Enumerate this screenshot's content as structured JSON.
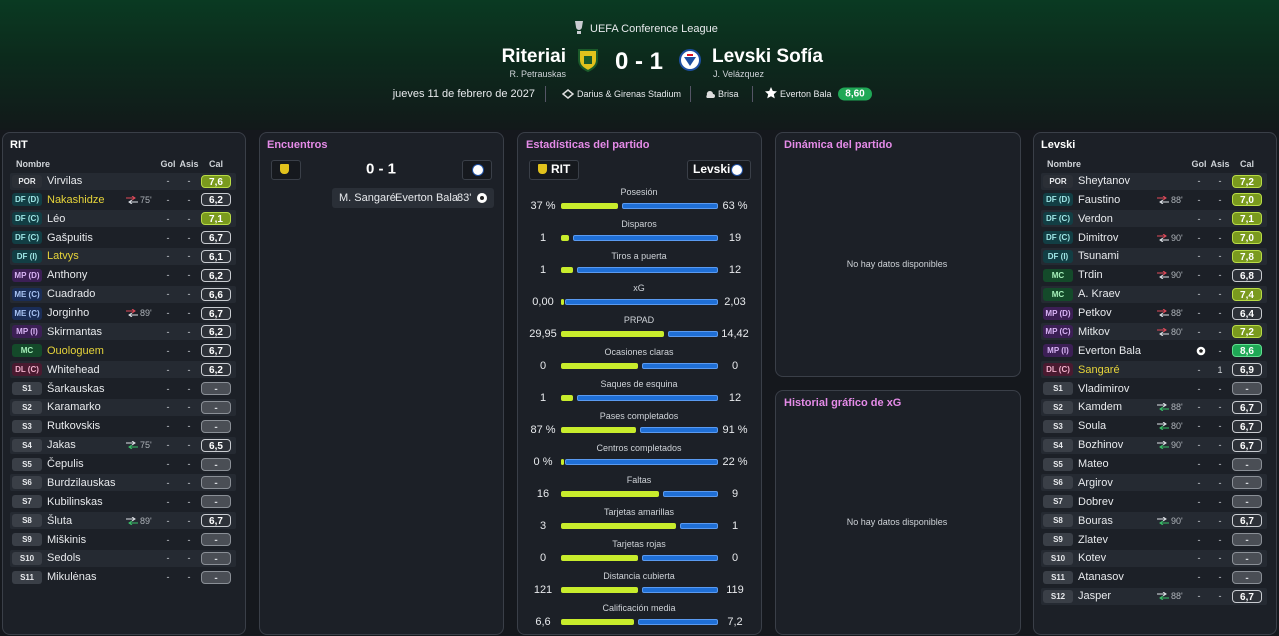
{
  "header": {
    "competition": "UEFA Conference League",
    "home_team": "Riteriai",
    "home_manager": "R. Petrauskas",
    "score": "0 - 1",
    "away_team": "Levski Sofía",
    "away_manager": "J. Velázquez",
    "date": "jueves 11 de febrero de 2027",
    "stadium": "Darius & Girenas Stadium",
    "weather": "Brisa",
    "motm": "Everton Bala",
    "motm_rating": "8,60"
  },
  "home_lineup": {
    "title": "RIT",
    "columns": [
      "Nombre",
      "Gol",
      "Asis",
      "Cal"
    ],
    "players": [
      {
        "pos": "POR",
        "name": "Virvilas",
        "gol": "-",
        "asis": "-",
        "cal": "7,6"
      },
      {
        "pos": "DF (D)",
        "name": "Nakashidze",
        "sub": "out",
        "sub_min": "75'",
        "gol": "-",
        "asis": "-",
        "cal": "6,2",
        "color": "#e6d43a"
      },
      {
        "pos": "DF (C)",
        "name": "Léo",
        "gol": "-",
        "asis": "-",
        "cal": "7,1"
      },
      {
        "pos": "DF (C)",
        "name": "Gašpuitis",
        "gol": "-",
        "asis": "-",
        "cal": "6,7"
      },
      {
        "pos": "DF (I)",
        "name": "Latvys",
        "gol": "-",
        "asis": "-",
        "cal": "6,1",
        "color": "#e6d43a"
      },
      {
        "pos": "MP (D)",
        "name": "Anthony",
        "gol": "-",
        "asis": "-",
        "cal": "6,2"
      },
      {
        "pos": "ME (C)",
        "name": "Cuadrado",
        "gol": "-",
        "asis": "-",
        "cal": "6,6"
      },
      {
        "pos": "ME (C)",
        "name": "Jorginho",
        "sub": "out",
        "sub_min": "89'",
        "gol": "-",
        "asis": "-",
        "cal": "6,7"
      },
      {
        "pos": "MP (I)",
        "name": "Skirmantas",
        "gol": "-",
        "asis": "-",
        "cal": "6,2"
      },
      {
        "pos": "MC",
        "name": "Ouologuem",
        "gol": "-",
        "asis": "-",
        "cal": "6,7",
        "color": "#e6d43a"
      },
      {
        "pos": "DL (C)",
        "name": "Whitehead",
        "gol": "-",
        "asis": "-",
        "cal": "6,2"
      },
      {
        "pos": "S1",
        "name": "Šarkauskas",
        "gol": "-",
        "asis": "-",
        "cal": "-"
      },
      {
        "pos": "S2",
        "name": "Karamarko",
        "gol": "-",
        "asis": "-",
        "cal": "-"
      },
      {
        "pos": "S3",
        "name": "Rutkovskis",
        "gol": "-",
        "asis": "-",
        "cal": "-"
      },
      {
        "pos": "S4",
        "name": "Jakas",
        "sub": "in",
        "sub_min": "75'",
        "gol": "-",
        "asis": "-",
        "cal": "6,5"
      },
      {
        "pos": "S5",
        "name": "Čepulis",
        "gol": "-",
        "asis": "-",
        "cal": "-"
      },
      {
        "pos": "S6",
        "name": "Burdzilauskas",
        "gol": "-",
        "asis": "-",
        "cal": "-"
      },
      {
        "pos": "S7",
        "name": "Kubilinskas",
        "gol": "-",
        "asis": "-",
        "cal": "-"
      },
      {
        "pos": "S8",
        "name": "Šluta",
        "sub": "in",
        "sub_min": "89'",
        "gol": "-",
        "asis": "-",
        "cal": "6,7"
      },
      {
        "pos": "S9",
        "name": "Miškinis",
        "gol": "-",
        "asis": "-",
        "cal": "-"
      },
      {
        "pos": "S10",
        "name": "Sedols",
        "gol": "-",
        "asis": "-",
        "cal": "-"
      },
      {
        "pos": "S11",
        "name": "Mikulėnas",
        "gol": "-",
        "asis": "-",
        "cal": "-"
      }
    ]
  },
  "away_lineup": {
    "title": "Levski",
    "columns": [
      "Nombre",
      "Gol",
      "Asis",
      "Cal"
    ],
    "players": [
      {
        "pos": "POR",
        "name": "Sheytanov",
        "gol": "-",
        "asis": "-",
        "cal": "7,2"
      },
      {
        "pos": "DF (D)",
        "name": "Faustino",
        "sub": "out",
        "sub_min": "88'",
        "gol": "-",
        "asis": "-",
        "cal": "7,0"
      },
      {
        "pos": "DF (C)",
        "name": "Verdon",
        "gol": "-",
        "asis": "-",
        "cal": "7,1"
      },
      {
        "pos": "DF (C)",
        "name": "Dimitrov",
        "sub": "out",
        "sub_min": "90'",
        "gol": "-",
        "asis": "-",
        "cal": "7,0"
      },
      {
        "pos": "DF (I)",
        "name": "Tsunami",
        "gol": "-",
        "asis": "-",
        "cal": "7,8"
      },
      {
        "pos": "MC",
        "name": "Trdin",
        "sub": "out",
        "sub_min": "90'",
        "gol": "-",
        "asis": "-",
        "cal": "6,8"
      },
      {
        "pos": "MC",
        "name": "A. Kraev",
        "gol": "-",
        "asis": "-",
        "cal": "7,4"
      },
      {
        "pos": "MP (D)",
        "name": "Petkov",
        "sub": "out",
        "sub_min": "88'",
        "gol": "-",
        "asis": "-",
        "cal": "6,4"
      },
      {
        "pos": "MP (C)",
        "name": "Mitkov",
        "sub": "out",
        "sub_min": "80'",
        "gol": "-",
        "asis": "-",
        "cal": "7,2"
      },
      {
        "pos": "MP (I)",
        "name": "Everton Bala",
        "goal": true,
        "asis": "-",
        "cal": "8,6"
      },
      {
        "pos": "DL (C)",
        "name": "Sangaré",
        "gol": "-",
        "asis": "1",
        "cal": "6,9",
        "color": "#e6d43a"
      },
      {
        "pos": "S1",
        "name": "Vladimirov",
        "gol": "-",
        "asis": "-",
        "cal": "-"
      },
      {
        "pos": "S2",
        "name": "Kamdem",
        "sub": "in",
        "sub_min": "88'",
        "gol": "-",
        "asis": "-",
        "cal": "6,7"
      },
      {
        "pos": "S3",
        "name": "Soula",
        "sub": "in",
        "sub_min": "80'",
        "gol": "-",
        "asis": "-",
        "cal": "6,7"
      },
      {
        "pos": "S4",
        "name": "Bozhinov",
        "sub": "in",
        "sub_min": "90'",
        "gol": "-",
        "asis": "-",
        "cal": "6,7"
      },
      {
        "pos": "S5",
        "name": "Mateo",
        "gol": "-",
        "asis": "-",
        "cal": "-"
      },
      {
        "pos": "S6",
        "name": "Argirov",
        "gol": "-",
        "asis": "-",
        "cal": "-"
      },
      {
        "pos": "S7",
        "name": "Dobrev",
        "gol": "-",
        "asis": "-",
        "cal": "-"
      },
      {
        "pos": "S8",
        "name": "Bouras",
        "sub": "in",
        "sub_min": "90'",
        "gol": "-",
        "asis": "-",
        "cal": "6,7"
      },
      {
        "pos": "S9",
        "name": "Zlatev",
        "gol": "-",
        "asis": "-",
        "cal": "-"
      },
      {
        "pos": "S10",
        "name": "Kotev",
        "gol": "-",
        "asis": "-",
        "cal": "-"
      },
      {
        "pos": "S11",
        "name": "Atanasov",
        "gol": "-",
        "asis": "-",
        "cal": "-"
      },
      {
        "pos": "S12",
        "name": "Jasper",
        "sub": "in",
        "sub_min": "88'",
        "gol": "-",
        "asis": "-",
        "cal": "6,7"
      }
    ]
  },
  "encounters": {
    "title": "Encuentros",
    "score": "0 - 1",
    "events": [
      {
        "assist": "M. Sangaré",
        "scorer": "Everton Bala",
        "minute": "83'"
      }
    ]
  },
  "stats": {
    "title": "Estadísticas del partido",
    "home": "RIT",
    "away": "Levski",
    "home_color": "#c8ec2c",
    "away_color": "#1f6fd6",
    "rows": [
      {
        "label": "Posesión",
        "values": [
          37,
          63
        ],
        "value_labels": [
          "37 %",
          "63 %"
        ]
      },
      {
        "label": "Disparos",
        "values": [
          1,
          19
        ]
      },
      {
        "label": "Tiros a puerta",
        "values": [
          1,
          12
        ]
      },
      {
        "label": "xG",
        "values": [
          0,
          2.03
        ],
        "value_labels": [
          "0,00",
          "2,03"
        ]
      },
      {
        "label": "PRPAD",
        "values": [
          29.95,
          14.42
        ],
        "value_labels": [
          "29,95",
          "14,42"
        ]
      },
      {
        "label": "Ocasiones claras",
        "values": [
          0,
          0
        ]
      },
      {
        "label": "Saques de esquina",
        "values": [
          1,
          12
        ]
      },
      {
        "label": "Pases completados",
        "values": [
          87,
          91
        ],
        "value_labels": [
          "87 %",
          "91 %"
        ]
      },
      {
        "label": "Centros completados",
        "values": [
          0,
          22
        ],
        "value_labels": [
          "0 %",
          "22 %"
        ]
      },
      {
        "label": "Faltas",
        "values": [
          16,
          9
        ]
      },
      {
        "label": "Tarjetas amarillas",
        "values": [
          3,
          1
        ]
      },
      {
        "label": "Tarjetas rojas",
        "values": [
          0,
          0
        ]
      },
      {
        "label": "Distancia cubierta",
        "values": [
          121,
          119
        ]
      },
      {
        "label": "Calificación media",
        "values": [
          6.6,
          7.2
        ],
        "value_labels": [
          "6,6",
          "7,2"
        ]
      }
    ]
  },
  "dynamics": {
    "title": "Dinámica del partido",
    "empty": "No hay datos disponibles"
  },
  "xg_history": {
    "title": "Historial gráfico de xG",
    "empty": "No hay datos disponibles"
  }
}
